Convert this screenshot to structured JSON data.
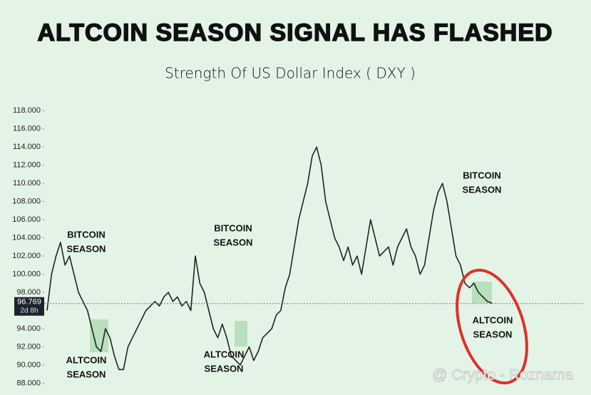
{
  "chart_data": {
    "type": "line",
    "title": "ALTCOIN SEASON SIGNAL HAS FLASHED",
    "subtitle": "Strength Of US Dollar Index ( DXY )",
    "values": [
      96,
      100,
      102,
      103.5,
      101,
      102,
      100,
      98,
      97,
      96,
      94,
      92,
      91.5,
      94,
      93,
      91,
      89.5,
      89.5,
      92,
      93,
      94,
      95,
      96,
      96.5,
      97,
      96.5,
      97.5,
      98,
      97,
      97.5,
      96.5,
      97,
      96,
      102,
      99,
      98,
      96,
      94,
      93,
      94.5,
      93,
      91,
      90.5,
      90,
      91,
      92,
      90.5,
      91.5,
      93,
      93.5,
      94,
      95.5,
      96,
      98.5,
      100,
      103,
      106,
      108,
      110,
      113,
      114,
      112,
      108,
      106,
      104,
      103,
      101.5,
      103,
      101,
      102,
      100,
      103,
      106,
      104,
      102,
      102.5,
      103,
      101,
      103,
      104,
      105,
      103,
      102,
      100,
      101,
      104,
      107,
      109,
      110,
      108,
      105,
      102,
      101,
      99,
      98.5,
      99,
      98,
      97.5,
      97,
      96.8
    ],
    "color": "#222222",
    "current": {
      "value": 96.769,
      "label": "96.769",
      "countdown": "2d 8h"
    },
    "ylim": [
      86.7,
      119.2
    ],
    "yticks": [
      {
        "value": 88,
        "label": "88.000"
      },
      {
        "value": 90,
        "label": "90.000"
      },
      {
        "value": 92,
        "label": "92.000"
      },
      {
        "value": 94,
        "label": "94.000"
      },
      {
        "value": 96,
        "label": "96.000"
      },
      {
        "value": 98,
        "label": "98.000"
      },
      {
        "value": 100,
        "label": "100.000"
      },
      {
        "value": 102,
        "label": "102.000"
      },
      {
        "value": 104,
        "label": "104.000"
      },
      {
        "value": 106,
        "label": "106.000"
      },
      {
        "value": 108,
        "label": "108.000"
      },
      {
        "value": 110,
        "label": "110.000"
      },
      {
        "value": 112,
        "label": "112.000"
      },
      {
        "value": 114,
        "label": "114.000"
      },
      {
        "value": 116,
        "label": "116.000"
      },
      {
        "value": 118,
        "label": "118.000"
      }
    ],
    "annotations": [
      [
        "BITCOIN",
        "SEASON"
      ],
      [
        "ALTCOIN",
        "SEASON"
      ],
      [
        "BITCOIN",
        "SEASON"
      ],
      [
        "ALTCOIN",
        "SEASON"
      ],
      [
        "BITCOIN",
        "SEASON"
      ],
      [
        "ALTCOIN",
        "SEASON"
      ]
    ],
    "watermark": "@ Crypto - Roznama"
  }
}
